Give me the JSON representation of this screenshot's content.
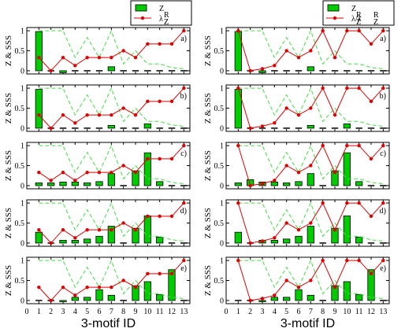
{
  "chart_data": [
    {
      "type": "bar",
      "column": "left",
      "legend": [
        {
          "name": "Z",
          "kind": "bar"
        },
        {
          "name": "λ",
          "sup": "R",
          "sub": "Z",
          "kind": "line"
        }
      ],
      "xlabel": "3-motif ID",
      "x_ticks": [
        "0",
        "1",
        "2",
        "3",
        "4",
        "5",
        "6",
        "7",
        "8",
        "9",
        "10",
        "11",
        "12",
        "13"
      ],
      "y_ticks": [
        "0",
        "0.5",
        "1"
      ],
      "ylim": [
        0,
        1.05
      ],
      "xlim": [
        0,
        13.5
      ],
      "colors": {
        "bar": "#00cc00",
        "line": "#e00000",
        "dashed": "#44dd44"
      },
      "panels": [
        {
          "label": "a)",
          "ylabel": "Z & SSS",
          "z": [
            0.98,
            0,
            -0.05,
            0,
            0,
            0,
            0.1,
            0,
            0,
            0,
            0,
            0,
            0
          ],
          "line": [
            0.33,
            0,
            0.33,
            0.13,
            0.33,
            0.33,
            0.33,
            0.5,
            0.33,
            0.67,
            0.67,
            0.67,
            1.0
          ],
          "dashed": [
            1.0,
            1.0,
            1.0,
            0.33,
            0.83,
            0.33,
            1.0,
            0.17,
            0.5,
            0.17,
            0.17,
            0.08,
            0.05
          ]
        },
        {
          "label": "b)",
          "ylabel": "Z & SSS",
          "z": [
            0.97,
            0,
            0,
            0,
            0,
            0,
            0.07,
            0,
            0,
            0.11,
            0,
            0,
            0
          ],
          "line": [
            0.33,
            0,
            0.33,
            0.13,
            0.33,
            0.33,
            0.33,
            0.5,
            0.33,
            0.67,
            0.67,
            0.67,
            1.0
          ],
          "dashed": [
            1.0,
            1.0,
            1.0,
            0.33,
            0.83,
            0.33,
            1.0,
            0.17,
            0.5,
            0.17,
            0.17,
            0.08,
            0.05
          ]
        },
        {
          "label": "c)",
          "ylabel": "Z & SSS",
          "z": [
            0.07,
            0.07,
            0.09,
            0.09,
            0.07,
            0.1,
            0.3,
            0,
            0.37,
            0.82,
            0.1,
            0,
            0
          ],
          "line": [
            0.33,
            0.13,
            0.33,
            0.13,
            0.33,
            0.33,
            0.33,
            0.5,
            0.33,
            0.67,
            0.67,
            0.67,
            1.0
          ],
          "dashed": [
            1.0,
            1.0,
            1.0,
            0.33,
            0.83,
            0.33,
            1.0,
            0.17,
            0.5,
            0.17,
            0.17,
            0.08,
            0.05
          ]
        },
        {
          "label": "d)",
          "ylabel": "Z & SSS",
          "z": [
            0.27,
            0,
            0.07,
            0.07,
            0.1,
            0.17,
            0.42,
            0,
            0.37,
            0.68,
            0.15,
            0,
            0
          ],
          "line": [
            0.33,
            0,
            0.33,
            0.13,
            0.33,
            0.33,
            0.33,
            0.5,
            0.33,
            0.67,
            0.67,
            0.67,
            1.0
          ],
          "dashed": [
            1.0,
            1.0,
            1.0,
            0.33,
            0.83,
            0.33,
            1.0,
            0.17,
            0.5,
            0.17,
            0.17,
            0.08,
            0.05
          ]
        },
        {
          "label": "e)",
          "ylabel": "Z & SSS",
          "z": [
            0,
            0,
            -0.03,
            0.08,
            0.08,
            0.27,
            0.13,
            0,
            0.37,
            0.47,
            0.15,
            0.77,
            0
          ],
          "line": [
            0.33,
            0,
            0.33,
            0.13,
            0.33,
            0.33,
            0.33,
            0.5,
            0.33,
            0.67,
            0.67,
            0.67,
            1.0
          ],
          "dashed": [
            1.0,
            1.0,
            1.0,
            0.33,
            0.83,
            0.33,
            1.0,
            0.17,
            0.5,
            0.17,
            0.17,
            0.08,
            0.05
          ]
        }
      ]
    },
    {
      "type": "bar",
      "column": "right",
      "legend": [
        {
          "name": "Z",
          "kind": "bar"
        },
        {
          "name": "λ/λ",
          "sup": "RR",
          "sub": "ZZ",
          "kind": "line"
        }
      ],
      "xlabel": "3-motif ID",
      "x_ticks": [
        "0",
        "1",
        "2",
        "3",
        "4",
        "5",
        "6",
        "7",
        "8",
        "9",
        "10",
        "11",
        "12",
        "13"
      ],
      "y_ticks": [
        "0",
        "0.5",
        "1"
      ],
      "ylim": [
        0,
        1.05
      ],
      "xlim": [
        0,
        13.5
      ],
      "colors": {
        "bar": "#00cc00",
        "line": "#e00000",
        "dashed": "#44dd44"
      },
      "panels": [
        {
          "label": "a)",
          "ylabel": "Z & SSS",
          "z": [
            0.98,
            0,
            -0.05,
            0,
            0,
            0,
            0.1,
            0,
            0,
            0,
            0,
            0,
            0
          ],
          "line": [
            1.0,
            0,
            0.05,
            0.13,
            0.5,
            0.33,
            0.5,
            1.0,
            0.33,
            1.0,
            1.0,
            0.67,
            1.0
          ],
          "dashed": [
            1.0,
            1.0,
            1.0,
            0.33,
            0.83,
            0.33,
            1.0,
            0.17,
            0.5,
            0.17,
            0.17,
            0.08,
            0.05
          ]
        },
        {
          "label": "b)",
          "ylabel": "Z & SSS",
          "z": [
            0.97,
            0,
            0,
            0,
            0,
            0,
            0.07,
            0,
            0,
            0.11,
            0,
            0,
            0
          ],
          "line": [
            1.0,
            0,
            0.05,
            0.13,
            0.5,
            0.33,
            0.5,
            1.0,
            0.33,
            1.0,
            1.0,
            0.67,
            1.0
          ],
          "dashed": [
            1.0,
            1.0,
            1.0,
            0.33,
            0.83,
            0.33,
            1.0,
            0.17,
            0.5,
            0.17,
            0.17,
            0.08,
            0.05
          ]
        },
        {
          "label": "c)",
          "ylabel": "Z & SSS",
          "z": [
            0.07,
            0.15,
            0.09,
            0.09,
            0.07,
            0.1,
            0.3,
            0,
            0.37,
            0.82,
            0.1,
            0,
            0
          ],
          "line": [
            1.0,
            0,
            0.05,
            0.13,
            0.5,
            0.33,
            0.5,
            1.0,
            0.33,
            1.0,
            1.0,
            0.67,
            1.0
          ],
          "dashed": [
            1.0,
            1.0,
            1.0,
            0.33,
            0.83,
            0.33,
            1.0,
            0.17,
            0.5,
            0.17,
            0.17,
            0.08,
            0.05
          ]
        },
        {
          "label": "d)",
          "ylabel": "Z & SSS",
          "z": [
            0.27,
            0,
            0.07,
            0.07,
            0.1,
            0.17,
            0.42,
            0,
            0.37,
            0.68,
            0.15,
            0,
            0
          ],
          "line": [
            1.0,
            0,
            0.05,
            0.13,
            0.5,
            0.33,
            0.5,
            1.0,
            0.33,
            1.0,
            1.0,
            0.67,
            1.0
          ],
          "dashed": [
            1.0,
            1.0,
            1.0,
            0.33,
            0.83,
            0.33,
            1.0,
            0.17,
            0.5,
            0.17,
            0.17,
            0.08,
            0.05
          ]
        },
        {
          "label": "e)",
          "ylabel": "Z & SSS",
          "z": [
            0,
            0,
            -0.03,
            0.08,
            0.08,
            0.27,
            0.13,
            0,
            0.37,
            0.47,
            0.15,
            0.77,
            0
          ],
          "line": [
            1.0,
            0,
            0.05,
            0.13,
            0.5,
            0.33,
            0.5,
            1.0,
            0.33,
            1.0,
            1.0,
            0.67,
            1.0
          ],
          "dashed": [
            1.0,
            1.0,
            1.0,
            0.33,
            0.83,
            0.33,
            1.0,
            0.17,
            0.5,
            0.17,
            0.17,
            0.08,
            0.05
          ]
        }
      ]
    }
  ]
}
